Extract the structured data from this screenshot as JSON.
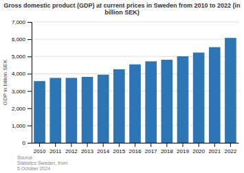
{
  "chart_data": {
    "type": "bar",
    "title": "Gross domestic product (GDP) at current prices in Sweden from 2010 to 2022 (in\nbillion SEK)",
    "y_label": "GDP in billion SEK",
    "categories": [
      "2010",
      "2011",
      "2012",
      "2013",
      "2014",
      "2015",
      "2016",
      "2017",
      "2018",
      "2019",
      "2020",
      "2021",
      "2022"
    ],
    "values": [
      3573,
      3759,
      3762,
      3819,
      3946,
      4261,
      4543,
      4720,
      4812,
      5011,
      5228,
      5541,
      6078
    ],
    "color": "#2e75b6",
    "ylim": [
      0,
      7000
    ],
    "yticks": [
      0,
      {
        "value": 1000,
        "label": "1,000"
      },
      {
        "value": 2000,
        "label": "2,000"
      },
      {
        "value": 3000,
        "label": "3,000"
      },
      {
        "value": 4000,
        "label": "4,000"
      },
      {
        "value": 5000,
        "label": "5,000"
      },
      {
        "value": 6000,
        "label": "6,000"
      },
      {
        "value": 7000,
        "label": "7,000"
      }
    ],
    "grid": true,
    "annotations": [
      "Source:\nStatistics Sweden, from\n5 October 2024"
    ]
  }
}
